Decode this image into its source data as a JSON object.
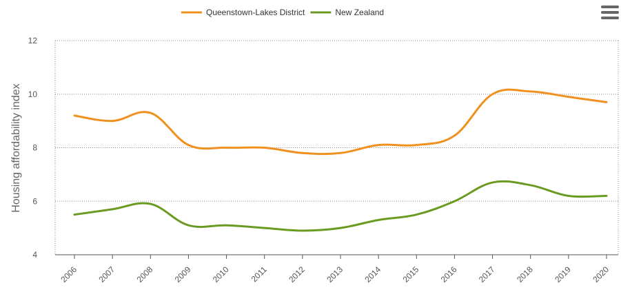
{
  "chart_data": {
    "type": "line",
    "y_label": "Housing affordability index",
    "categories": [
      "2006",
      "2007",
      "2008",
      "2009",
      "2010",
      "2011",
      "2012",
      "2013",
      "2014",
      "2015",
      "2016",
      "2017",
      "2018",
      "2019",
      "2020"
    ],
    "series": [
      {
        "name": "Queenstown-Lakes District",
        "color": "#f0901e",
        "values": [
          9.2,
          9.0,
          9.3,
          8.1,
          8.0,
          8.0,
          7.8,
          7.8,
          8.1,
          8.1,
          8.45,
          10.0,
          10.1,
          9.9,
          9.7
        ]
      },
      {
        "name": "New Zealand",
        "color": "#6a9a1f",
        "values": [
          5.5,
          5.7,
          5.9,
          5.1,
          5.1,
          5.0,
          4.9,
          5.0,
          5.3,
          5.5,
          6.0,
          6.7,
          6.6,
          6.2,
          6.2
        ]
      }
    ],
    "ylim": [
      4,
      12
    ],
    "yticks": [
      4,
      6,
      8,
      10,
      12
    ],
    "grid": true
  }
}
